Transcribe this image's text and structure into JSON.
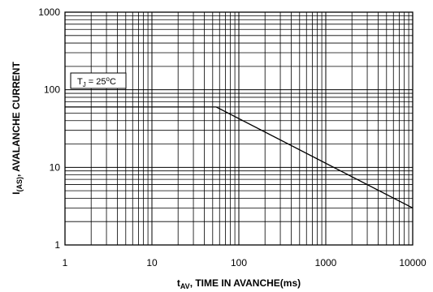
{
  "chart_data": {
    "type": "line",
    "x_scale": "log",
    "y_scale": "log",
    "xlim": [
      1,
      10000
    ],
    "ylim": [
      1,
      1000
    ],
    "grid": true,
    "x_ticks": [
      "1",
      "10",
      "100",
      "1000",
      "10000"
    ],
    "y_ticks": [
      "1",
      "10",
      "100",
      "1000"
    ],
    "xlabel": {
      "main": "t",
      "sub": "AV",
      "rest": ", TIME IN AVANCHE(ms)"
    },
    "ylabel": {
      "main": "I",
      "sub": "(AS)",
      "rest": ", AVALANCHE CURRENT"
    },
    "annotation": {
      "main": "T",
      "sub": "J",
      "rest": " = 25",
      "sup": "o",
      "tail": "C"
    },
    "series": [
      {
        "x": [
          1,
          55,
          10000
        ],
        "y": [
          60,
          60,
          3
        ]
      }
    ]
  }
}
